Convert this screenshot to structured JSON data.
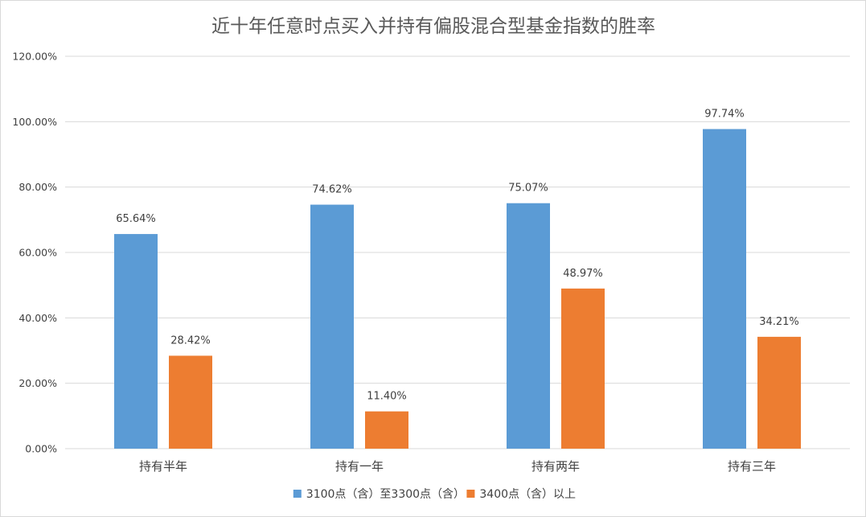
{
  "chart_data": {
    "type": "bar",
    "title": "近十年任意时点买入并持有偏股混合型基金指数的胜率",
    "xlabel": "",
    "ylabel": "",
    "categories": [
      "持有半年",
      "持有一年",
      "持有两年",
      "持有三年"
    ],
    "series": [
      {
        "name": "3100点（含）至3300点（含）",
        "color": "#5b9bd5",
        "values": [
          65.64,
          74.62,
          75.07,
          97.74
        ],
        "labels": [
          "65.64%",
          "74.62%",
          "75.07%",
          "97.74%"
        ]
      },
      {
        "name": "3400点（含）以上",
        "color": "#ed7d31",
        "values": [
          28.42,
          11.4,
          48.97,
          34.21
        ],
        "labels": [
          "28.42%",
          "11.40%",
          "48.97%",
          "34.21%"
        ]
      }
    ],
    "ylim": [
      0,
      120
    ],
    "yticks": [
      0,
      20,
      40,
      60,
      80,
      100,
      120
    ],
    "ytick_labels": [
      "0.00%",
      "20.00%",
      "40.00%",
      "60.00%",
      "80.00%",
      "100.00%",
      "120.00%"
    ],
    "grid": true,
    "legend_position": "bottom"
  }
}
